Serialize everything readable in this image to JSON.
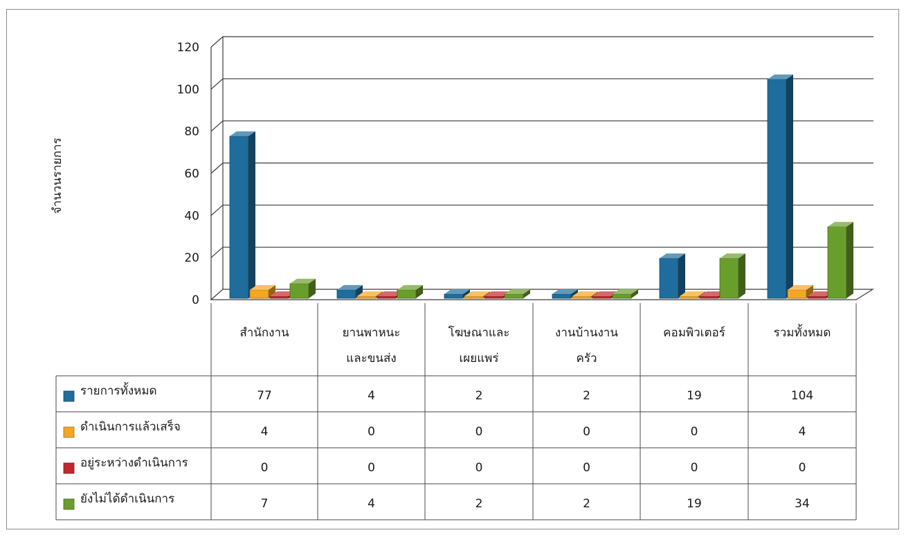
{
  "chart_data": {
    "type": "bar",
    "title": "",
    "xlabel": "",
    "ylabel": "จำนวนรายการ",
    "ylim": [
      0,
      120
    ],
    "yticks": [
      0,
      20,
      40,
      60,
      80,
      100,
      120
    ],
    "grid": true,
    "legend": "table-left",
    "categories": [
      [
        "สำนักงาน"
      ],
      [
        "ยานพาหนะ",
        "และขนส่ง"
      ],
      [
        "โฆษณาและ",
        "เผยแพร่"
      ],
      [
        "งานบ้านงาน",
        "ครัว"
      ],
      [
        "คอมพิวเตอร์"
      ],
      [
        "รวมทั้งหมด"
      ]
    ],
    "series": [
      {
        "name": "รายการทั้งหมด",
        "color": "#1f6d9c",
        "values": [
          77,
          4,
          2,
          2,
          19,
          104
        ]
      },
      {
        "name": "ดำเนินการแล้วเสร็จ",
        "color": "#f5a623",
        "values": [
          4,
          0,
          0,
          0,
          0,
          4
        ]
      },
      {
        "name": "อยู่ระหว่างดำเนินการ",
        "color": "#c0282d",
        "values": [
          0,
          0,
          0,
          0,
          0,
          0
        ]
      },
      {
        "name": "ยังไม่ได้ดำเนินการ",
        "color": "#6a9e2c",
        "values": [
          7,
          4,
          2,
          2,
          19,
          34
        ]
      }
    ]
  }
}
